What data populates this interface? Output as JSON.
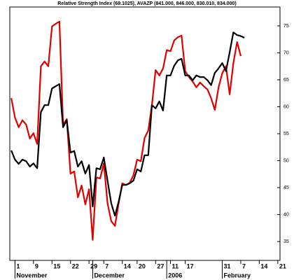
{
  "chart_data": {
    "type": "line",
    "title": "Relative Strength Index (69.1025), AVAZP (841.000, 846.000, 830.010, 834.000)",
    "x": [
      0,
      1,
      2,
      3,
      4,
      5,
      6,
      7,
      8,
      9,
      10,
      11,
      12,
      13,
      14,
      15,
      16,
      17,
      18,
      19,
      20,
      21,
      22,
      23,
      24,
      25,
      26,
      27,
      28,
      29,
      30,
      31,
      32,
      33,
      34,
      35,
      36,
      37,
      38,
      39,
      40,
      41,
      42,
      43,
      44,
      45,
      46,
      47,
      48,
      49,
      50,
      51,
      52,
      53,
      54,
      55,
      56,
      57,
      58,
      59,
      60,
      61,
      62,
      63
    ],
    "series": [
      {
        "color": "#e00000",
        "values": [
          61.6,
          58.0,
          56.2,
          57.5,
          56.7,
          54.1,
          55.1,
          53.1,
          67.5,
          68.4,
          67.5,
          74.9,
          75.4,
          75.8,
          56.7,
          57.7,
          47.6,
          48.0,
          43.2,
          45.4,
          41.9,
          44.7,
          35.3,
          46.9,
          46.7,
          49.5,
          42.1,
          38.8,
          37.9,
          42.1,
          45.8,
          45.5,
          45.9,
          47.3,
          50.2,
          49.9,
          54.2,
          55.6,
          60.3,
          66.8,
          65.8,
          67.1,
          70.5,
          70.3,
          72.3,
          72.9,
          73.2,
          66.6,
          65.5,
          64.7,
          63.6,
          64.5,
          63.8,
          63.2,
          61.6,
          59.4,
          63.6,
          66.2,
          67.5,
          62.3,
          68.1,
          72.0,
          69.4,
          null
        ]
      },
      {
        "color": "#000000",
        "values": [
          51.9,
          50.2,
          49.4,
          50.2,
          49.9,
          48.9,
          49.5,
          48.6,
          59.0,
          60.3,
          60.3,
          63.4,
          63.8,
          64.2,
          56.2,
          57.5,
          51.5,
          51.8,
          48.9,
          49.9,
          47.6,
          49.2,
          41.5,
          48.6,
          48.4,
          50.6,
          46.3,
          42.1,
          39.8,
          42.4,
          45.5,
          45.5,
          45.8,
          46.3,
          48.4,
          48.0,
          51.0,
          51.0,
          60.3,
          59.7,
          61.0,
          59.3,
          65.8,
          65.8,
          67.6,
          68.6,
          68.9,
          65.8,
          65.8,
          64.9,
          65.8,
          65.5,
          65.5,
          64.9,
          64.0,
          66.3,
          67.1,
          68.1,
          66.6,
          70.1,
          73.8,
          73.3,
          73.1,
          72.8
        ]
      }
    ],
    "xlim": [
      -0.4,
      72.6
    ],
    "xticks": [
      {
        "value": 1,
        "label": "1"
      },
      {
        "value": 6,
        "label": "9"
      },
      {
        "value": 11,
        "label": "15"
      },
      {
        "value": 16,
        "label": "22"
      },
      {
        "value": 21,
        "label": "29"
      },
      {
        "value": 25,
        "label": "7"
      },
      {
        "value": 30,
        "label": "14"
      },
      {
        "value": 34,
        "label": "20"
      },
      {
        "value": 39,
        "label": "27"
      },
      {
        "value": 43,
        "label": "11"
      },
      {
        "value": 47,
        "label": "17"
      },
      {
        "value": 57,
        "label": "31"
      },
      {
        "value": 62,
        "label": "7"
      },
      {
        "value": 67,
        "label": "14"
      },
      {
        "value": 72,
        "label": "21"
      }
    ],
    "month_labels": [
      {
        "value": 1,
        "label": "November"
      },
      {
        "value": 22,
        "label": "December"
      },
      {
        "value": 42,
        "label": "2006"
      },
      {
        "value": 57,
        "label": "February"
      }
    ],
    "ylim": [
      31.5,
      78.5
    ],
    "yticks": [
      35,
      40,
      45,
      50,
      55,
      60,
      65,
      70,
      75
    ]
  }
}
